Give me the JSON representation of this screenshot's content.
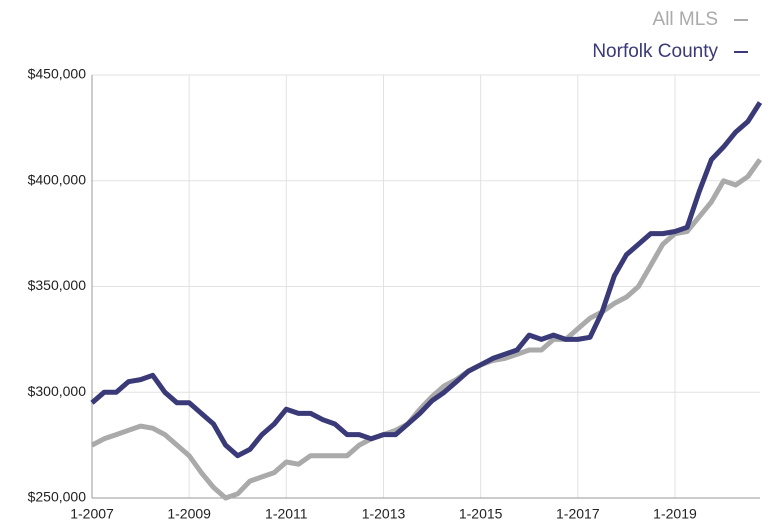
{
  "chart_data": {
    "type": "line",
    "categories": [
      "1-2007",
      null,
      null,
      null,
      null,
      null,
      null,
      null,
      "1-2009",
      null,
      null,
      null,
      null,
      null,
      null,
      null,
      "1-2011",
      null,
      null,
      null,
      null,
      null,
      null,
      null,
      "1-2013",
      null,
      null,
      null,
      null,
      null,
      null,
      null,
      "1-2015",
      null,
      null,
      null,
      null,
      null,
      null,
      null,
      "1-2017",
      null,
      null,
      null,
      null,
      null,
      null,
      null,
      "1-2019",
      null,
      null,
      null,
      null,
      null,
      null,
      null
    ],
    "series": [
      {
        "name": "All MLS",
        "color": "#aaaaaa",
        "values": [
          275000,
          278000,
          280000,
          282000,
          284000,
          283000,
          280000,
          275000,
          270000,
          262000,
          255000,
          250000,
          252000,
          258000,
          260000,
          262000,
          267000,
          266000,
          270000,
          270000,
          270000,
          270000,
          275000,
          278000,
          280000,
          282000,
          285000,
          292000,
          298000,
          303000,
          306000,
          310000,
          313000,
          315000,
          316000,
          318000,
          320000,
          320000,
          325000,
          325000,
          330000,
          335000,
          338000,
          342000,
          345000,
          350000,
          360000,
          370000,
          375000,
          376000,
          383000,
          390000,
          400000,
          398000,
          402000,
          410000
        ]
      },
      {
        "name": "Norfolk County",
        "color": "#3a3a78",
        "values": [
          295000,
          300000,
          300000,
          305000,
          306000,
          308000,
          300000,
          295000,
          295000,
          290000,
          285000,
          275000,
          270000,
          273000,
          280000,
          285000,
          292000,
          290000,
          290000,
          287000,
          285000,
          280000,
          280000,
          278000,
          280000,
          280000,
          285000,
          290000,
          296000,
          300000,
          305000,
          310000,
          313000,
          316000,
          318000,
          320000,
          327000,
          325000,
          327000,
          325000,
          325000,
          326000,
          338000,
          355000,
          365000,
          370000,
          375000,
          375000,
          376000,
          378000,
          395000,
          410000,
          416000,
          423000,
          428000,
          437000
        ]
      }
    ],
    "ylim": [
      250000,
      450000
    ],
    "yticks": [
      {
        "value": 250000,
        "label": "$250,000"
      },
      {
        "value": 300000,
        "label": "$300,000"
      },
      {
        "value": 350000,
        "label": "$350,000"
      },
      {
        "value": 400000,
        "label": "$400,000"
      },
      {
        "value": 450000,
        "label": "$450,000"
      }
    ],
    "grid": true
  }
}
